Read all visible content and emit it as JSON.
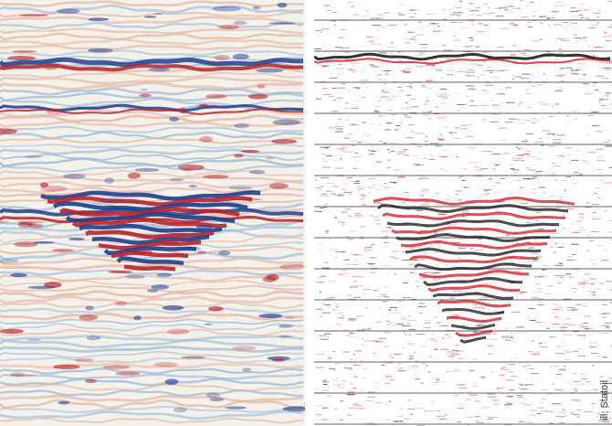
{
  "image": {
    "credit": "ill: Statoil",
    "left_panel": {
      "description_colors": {
        "positive": "#b8232a",
        "negative": "#1f3f8f",
        "background": "#f4f1ea",
        "faint_positive": "#e4b8a8",
        "faint_negative": "#9fbcd8"
      }
    },
    "right_panel": {
      "description_colors": {
        "positive": "#d3141e",
        "negative": "#111111",
        "background": "#ffffff",
        "grid": "#3a3a3a"
      }
    }
  }
}
